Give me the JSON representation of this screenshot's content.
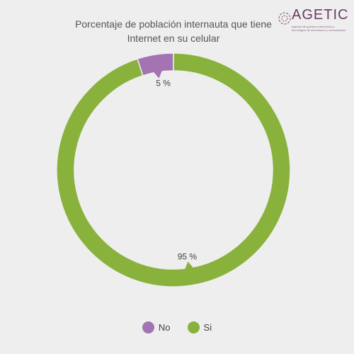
{
  "title_line1": "Porcentaje de población internauta que tiene",
  "title_line2": "Internet en su celular",
  "logo": {
    "name": "AGETIC",
    "tagline": "Agencia de gobierno electrónico y tecnologías de información y comunicación"
  },
  "colors": {
    "No": "#a374b1",
    "Si": "#88b23c",
    "background": "#eeeeee"
  },
  "chart_data": {
    "type": "pie",
    "variant": "donut",
    "title": "Porcentaje de población internauta que tiene Internet en su celular",
    "slices": [
      {
        "label": "No",
        "value": 5,
        "display": "5 %"
      },
      {
        "label": "Si",
        "value": 95,
        "display": "95 %"
      }
    ],
    "legend": [
      "No",
      "Si"
    ],
    "legend_position": "bottom"
  }
}
